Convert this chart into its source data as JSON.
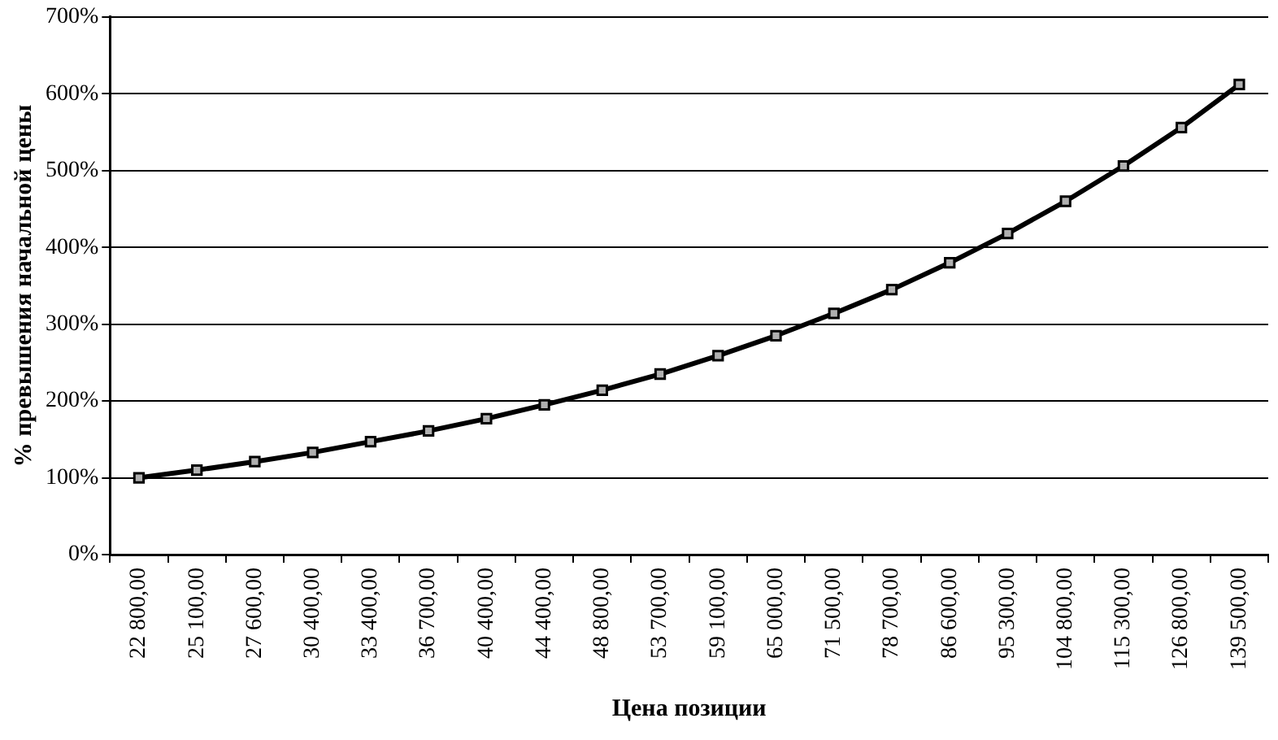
{
  "chart_data": {
    "type": "line",
    "xlabel": "Цена позиции",
    "ylabel": "% превышения начальной цены",
    "categories": [
      "22 800,00",
      "25 100,00",
      "27 600,00",
      "30 400,00",
      "33 400,00",
      "36 700,00",
      "40 400,00",
      "44 400,00",
      "48 800,00",
      "53 700,00",
      "59 100,00",
      "65 000,00",
      "71 500,00",
      "78 700,00",
      "86 600,00",
      "95 300,00",
      "104 800,00",
      "115 300,00",
      "126 800,00",
      "139 500,00"
    ],
    "series": [
      {
        "color": "#000000",
        "values": [
          100,
          110,
          121,
          133,
          147,
          161,
          177,
          195,
          214,
          235,
          259,
          285,
          314,
          345,
          380,
          418,
          460,
          506,
          556,
          612
        ]
      }
    ],
    "ylim": [
      0,
      700
    ],
    "yticks": [
      {
        "value": 0,
        "label": "0%"
      },
      {
        "value": 100,
        "label": "100%"
      },
      {
        "value": 200,
        "label": "200%"
      },
      {
        "value": 300,
        "label": "300%"
      },
      {
        "value": 400,
        "label": "400%"
      },
      {
        "value": 500,
        "label": "500%"
      },
      {
        "value": 600,
        "label": "600%"
      },
      {
        "value": 700,
        "label": "700%"
      }
    ],
    "grid": "y",
    "legend": false,
    "marker": "square",
    "line_style": "solid"
  }
}
